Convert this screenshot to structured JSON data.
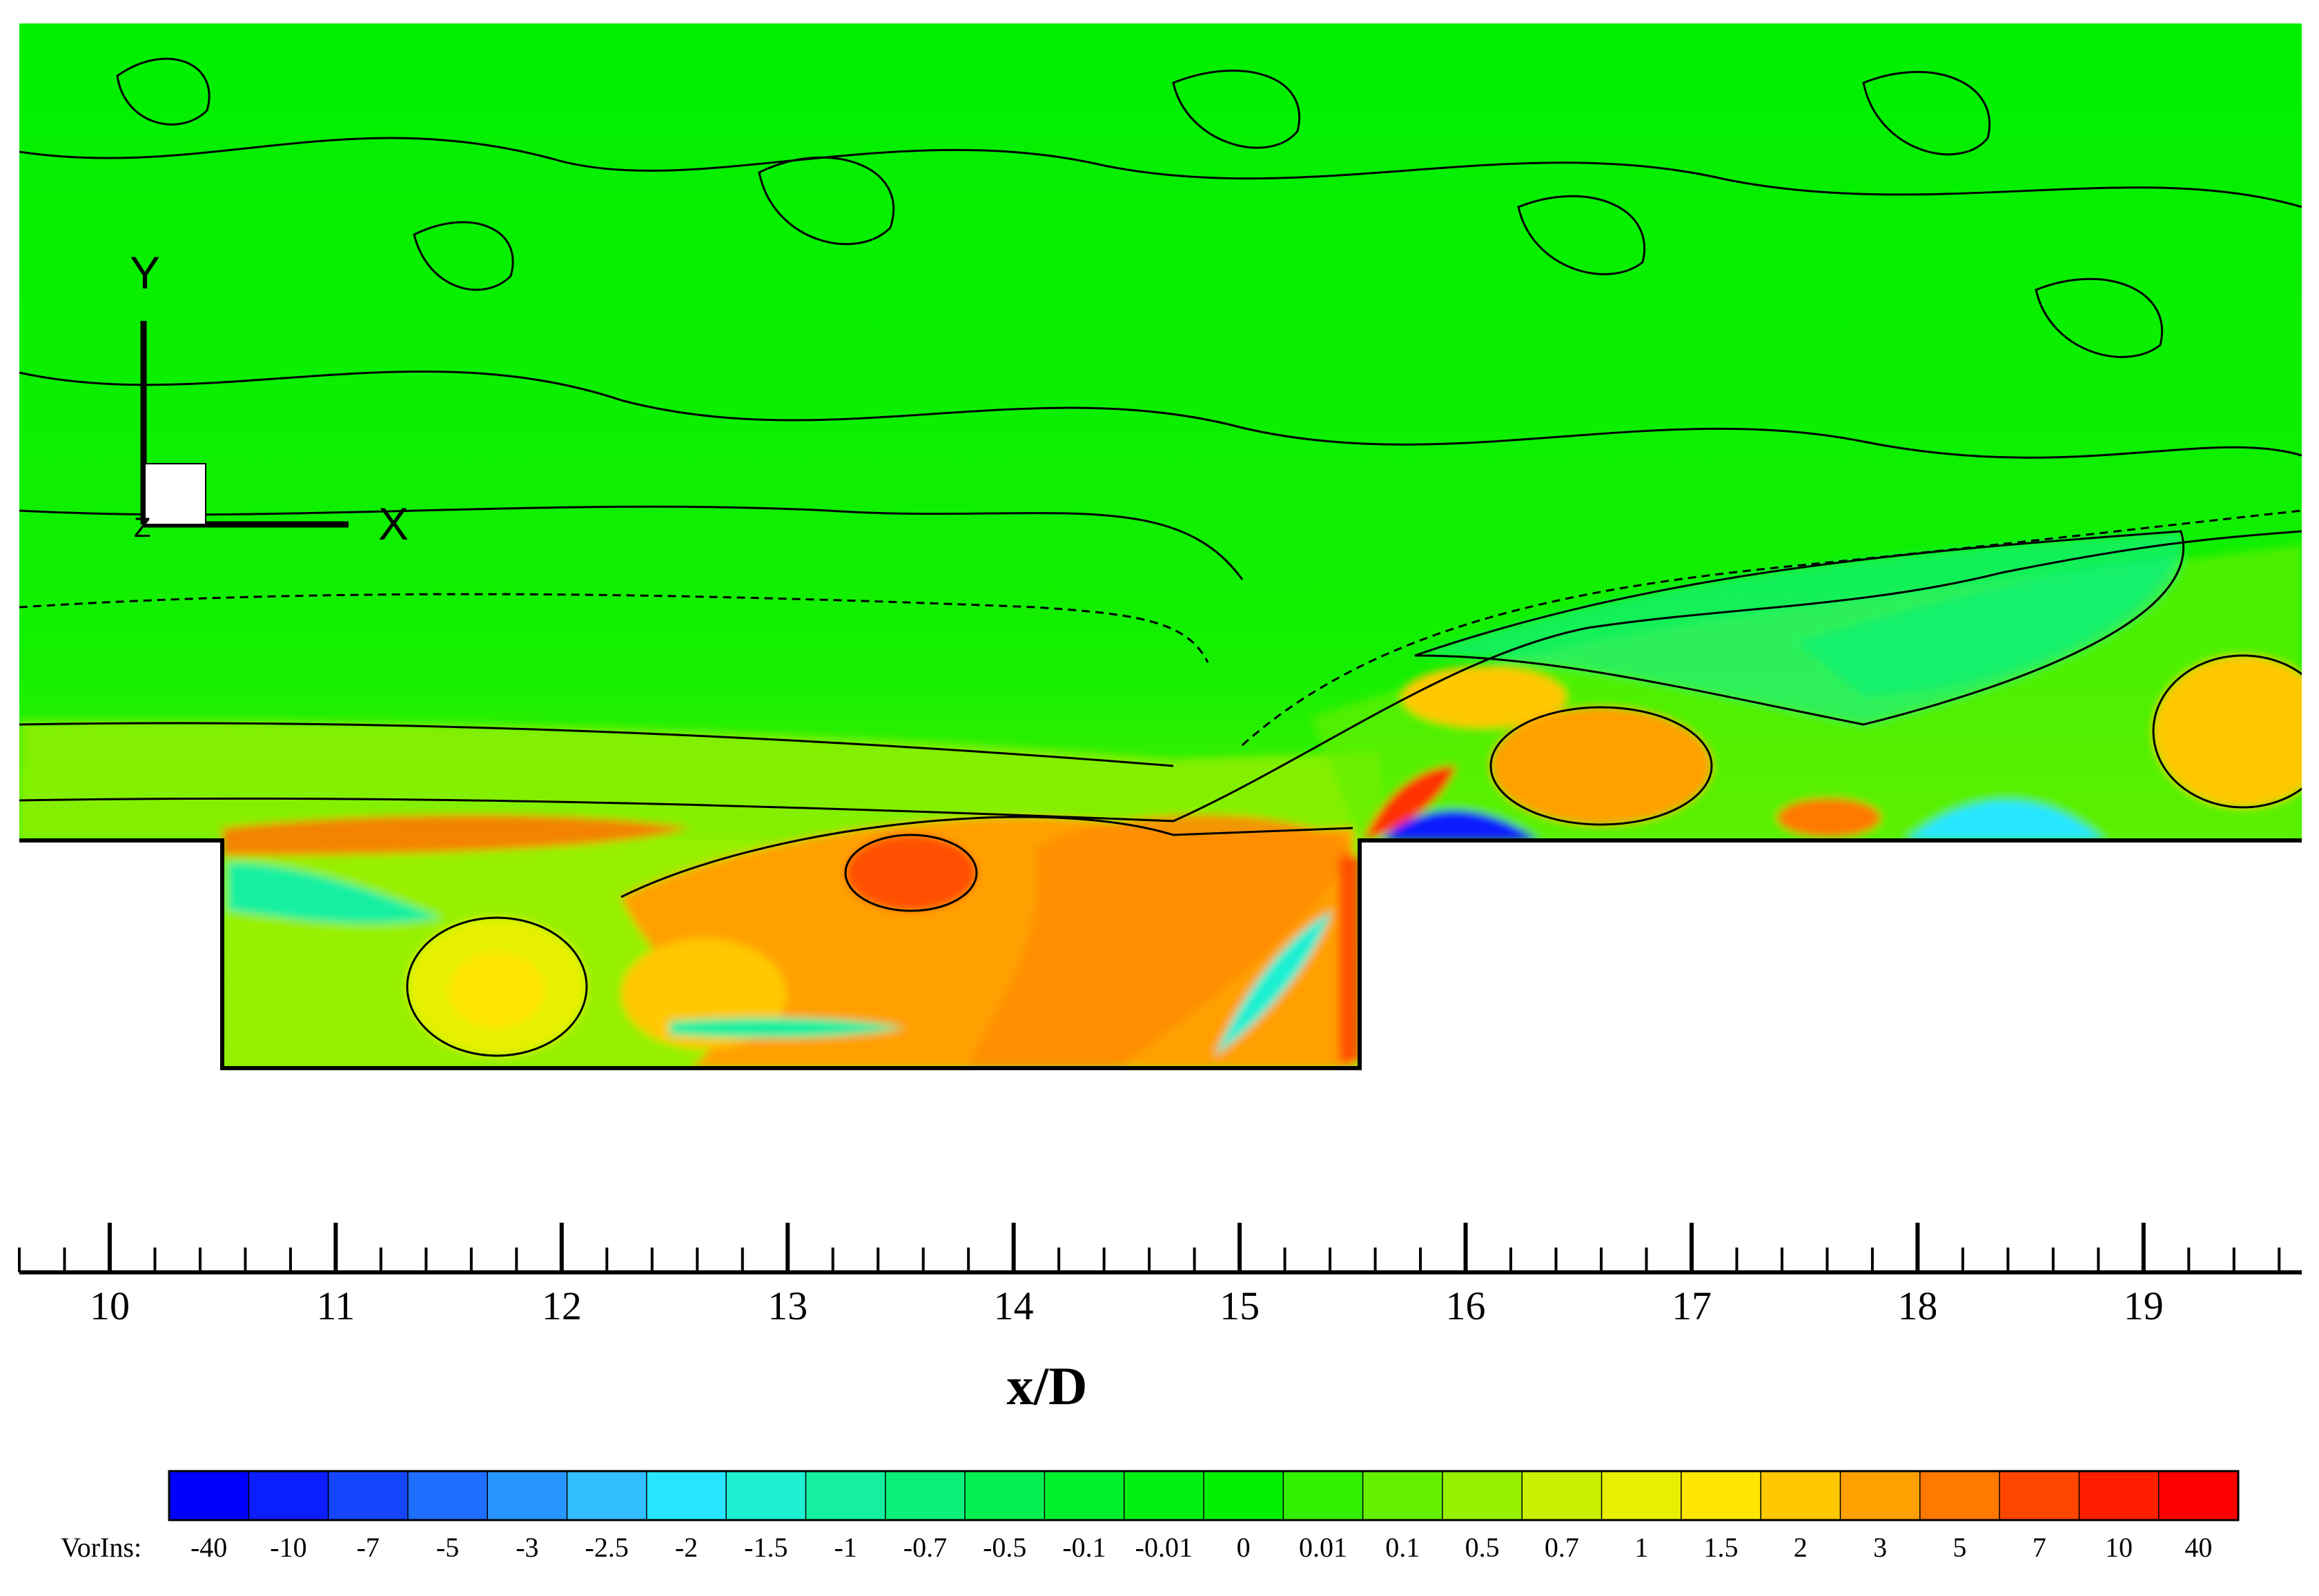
{
  "chart_data": {
    "type": "heatmap",
    "xlabel": "x/D",
    "x_ticks": [
      "10",
      "11",
      "12",
      "13",
      "14",
      "15",
      "16",
      "17",
      "18",
      "19"
    ],
    "xlim": [
      9.6,
      19.7
    ],
    "cavity": {
      "x_start": 10.5,
      "x_end": 15.5
    },
    "triad": {
      "x_label": "X",
      "y_label": "Y",
      "z_label": "Z"
    },
    "colorbar": {
      "title": "VorIns:",
      "levels": [
        "-40",
        "-10",
        "-7",
        "-5",
        "-3",
        "-2.5",
        "-2",
        "-1.5",
        "-1",
        "-0.7",
        "-0.5",
        "-0.1",
        "-0.01",
        "0",
        "0.01",
        "0.1",
        "0.5",
        "0.7",
        "1",
        "1.5",
        "2",
        "3",
        "5",
        "7",
        "10",
        "40"
      ],
      "colors": [
        "#0000ff",
        "#0a1eff",
        "#1446ff",
        "#1e6eff",
        "#2896ff",
        "#32beff",
        "#28e6ff",
        "#1ef0d2",
        "#14f0a0",
        "#0af078",
        "#05f050",
        "#00f02d",
        "#00f014",
        "#00f000",
        "#32f000",
        "#64f000",
        "#96f000",
        "#c8f000",
        "#e6f000",
        "#ffe600",
        "#ffc800",
        "#ffa000",
        "#ff7800",
        "#ff4600",
        "#ff1e00",
        "#ff0000"
      ]
    }
  }
}
